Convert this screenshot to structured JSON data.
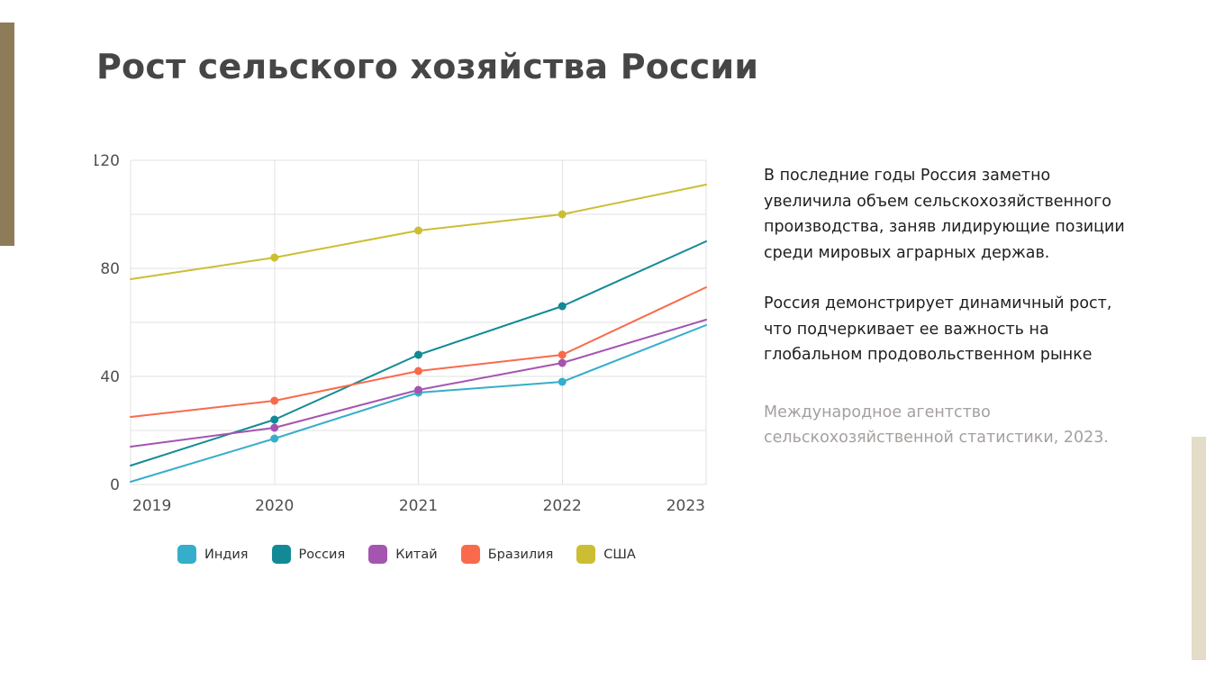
{
  "title": "Рост сельского хозяйства России",
  "body": {
    "paragraph1": "В последние годы Россия заметно увеличила объем сельскохозяйственного производства, заняв лидирующие позиции среди мировых аграрных держав.",
    "paragraph2": "Россия демонстрирует динамичный рост, что подчеркивает ее важность на глобальном продовольственном рынке",
    "source": "Международное агентство сельскохозяйственной статистики, 2023."
  },
  "accent_bars": {
    "left_color": "#8e7c58",
    "right_color": "#e2dcc9"
  },
  "chart_data": {
    "type": "line",
    "title": "",
    "xlabel": "",
    "ylabel": "",
    "categories": [
      "2019",
      "2020",
      "2021",
      "2022",
      "2023"
    ],
    "series": [
      {
        "name": "Индия",
        "color": "#35aecb",
        "values": [
          1,
          17,
          34,
          38,
          59
        ]
      },
      {
        "name": "Россия",
        "color": "#128a96",
        "values": [
          7,
          24,
          48,
          66,
          90
        ]
      },
      {
        "name": "Китай",
        "color": "#a455b0",
        "values": [
          14,
          21,
          35,
          45,
          61
        ]
      },
      {
        "name": "Бразилия",
        "color": "#f96a4d",
        "values": [
          25,
          31,
          42,
          48,
          73
        ]
      },
      {
        "name": "США",
        "color": "#ccbe33",
        "values": [
          76,
          84,
          94,
          100,
          111
        ]
      }
    ],
    "ylim": [
      0,
      120
    ],
    "y_tick_labels": [
      0,
      40,
      80,
      120
    ],
    "grid_step": 20,
    "grid": true,
    "legend_position": "bottom",
    "marker_categories": [
      "2020",
      "2021",
      "2022"
    ],
    "tick_color": "#4f4f4f",
    "grid_color": "#e2e2e2"
  }
}
